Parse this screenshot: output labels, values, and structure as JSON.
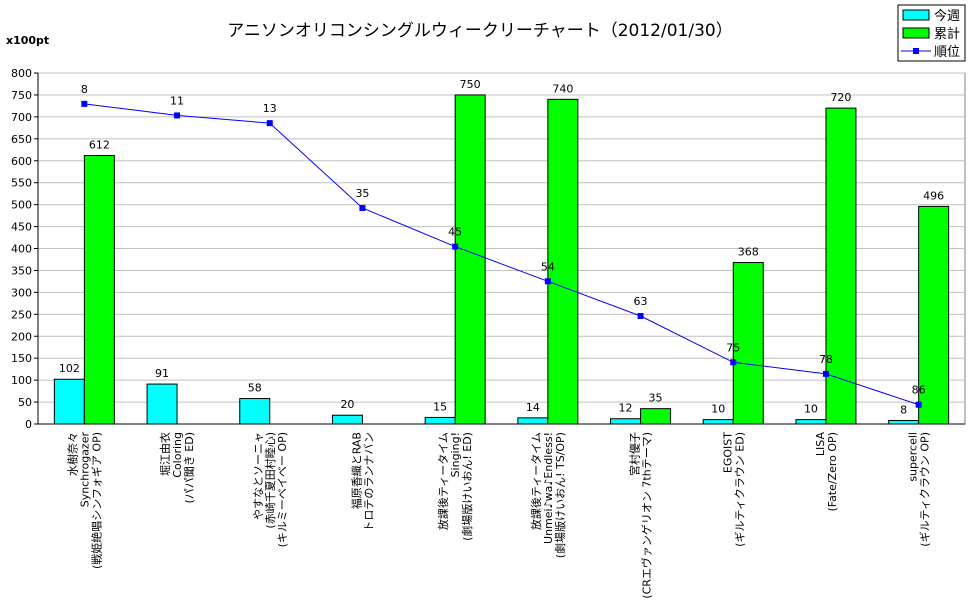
{
  "chart_data": {
    "type": "bar-line",
    "title": "アニソンオリコンシングルウィークリーチャート（2012/01/30）",
    "y_label": "x100pt",
    "categories": [
      [
        "水樹奈々",
        "Synchrogazer",
        "(戦姫絶唱シンフォギア OP)"
      ],
      [
        "堀江由衣",
        "Coloring",
        "(パパ聞き ED)"
      ],
      [
        "やすなとソーニャ",
        "(赤崎千夏田村睦心)",
        "(キルミーベイベー OP)"
      ],
      [
        "福原香織とRAB",
        "トロテのランナバン"
      ],
      [
        "放課後ティータイム",
        "Singing!",
        "(劇場版けいおん! ED)"
      ],
      [
        "放課後ティータイム",
        "Unmei♪wa♪Endless!",
        "(劇場版けいおん! TS/OP)"
      ],
      [
        "宮村優子",
        "(CRエヴァンゲリオン 7thテーマ)"
      ],
      [
        "EGOIST",
        "(ギルティクラウン ED)"
      ],
      [
        "LISA",
        "(Fate/Zero OP)"
      ],
      [
        "supercell",
        "(ギルティクラウン OP)"
      ]
    ],
    "series": [
      {
        "name": "今週",
        "color": "#00ffff",
        "type": "bar",
        "values": [
          102,
          91,
          58,
          20,
          15,
          14,
          12,
          10,
          10,
          8
        ]
      },
      {
        "name": "累計",
        "color": "#00ff00",
        "type": "bar",
        "values": [
          612,
          null,
          null,
          null,
          750,
          740,
          35,
          368,
          720,
          496
        ]
      },
      {
        "name": "順位",
        "color": "#0000ff",
        "type": "line",
        "axis": "y2",
        "values": [
          8,
          11,
          13,
          35,
          45,
          54,
          63,
          75,
          78,
          86
        ]
      }
    ],
    "ylim": [
      0,
      800
    ],
    "yticks": [
      0,
      50,
      100,
      150,
      200,
      250,
      300,
      350,
      400,
      450,
      500,
      550,
      600,
      650,
      700,
      750,
      800
    ],
    "y2lim": [
      91,
      0
    ],
    "grid": true,
    "legend": "top-right"
  }
}
